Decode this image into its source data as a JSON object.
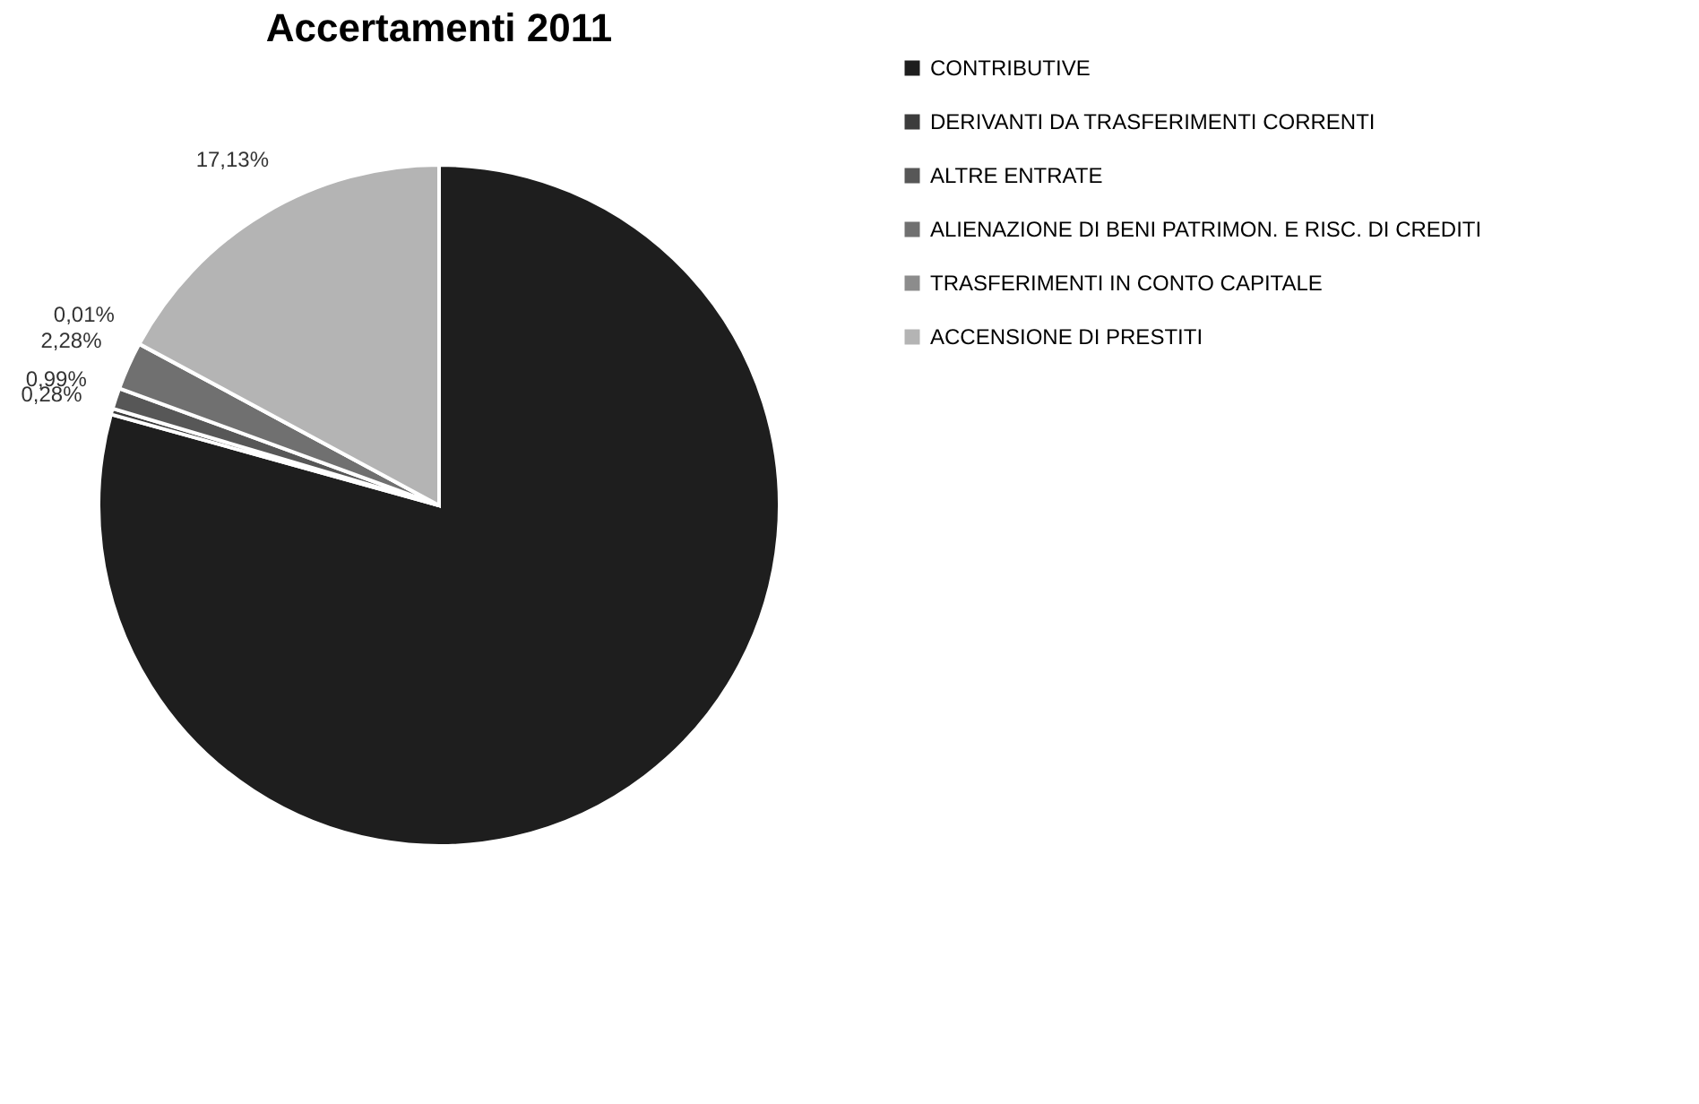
{
  "chart_data": {
    "type": "pie",
    "title": "Accertamenti 2011",
    "categories": [
      "CONTRIBUTIVE",
      "DERIVANTI DA TRASFERIMENTI CORRENTI",
      "ALTRE ENTRATE",
      "ALIENAZIONE DI BENI PATRIMON. E RISC. DI CREDITI",
      "TRASFERIMENTI IN CONTO CAPITALE",
      "ACCENSIONE DI PRESTITI"
    ],
    "values": [
      79.31,
      0.28,
      0.99,
      2.28,
      0.01,
      17.13
    ],
    "value_labels": [
      null,
      "0,28%",
      "0,99%",
      "2,28%",
      "0,01%",
      "17,13%"
    ],
    "colors": [
      "#1e1e1e",
      "#3c3c3c",
      "#575757",
      "#707070",
      "#8c8c8c",
      "#b4b4b4"
    ],
    "legend": "right"
  }
}
